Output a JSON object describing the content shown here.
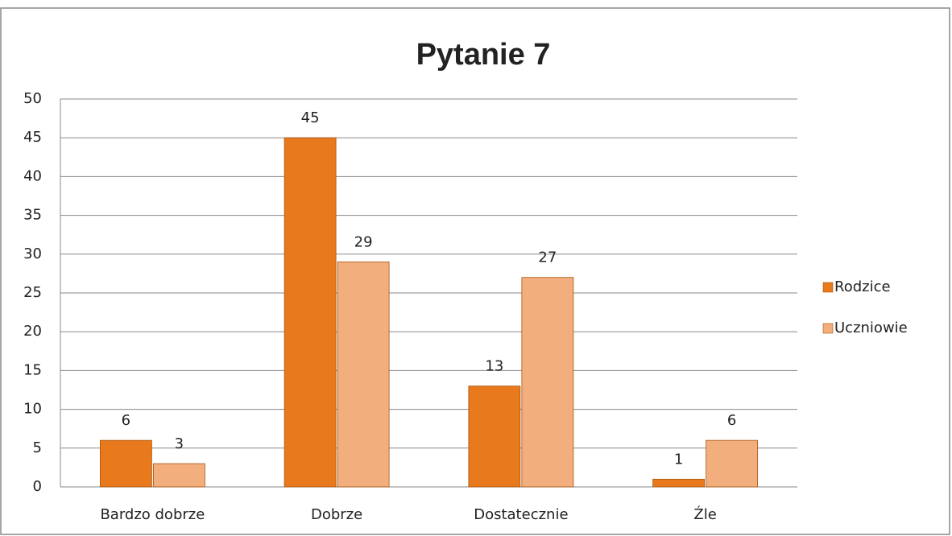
{
  "chart_data": {
    "type": "bar",
    "title": "Pytanie 7",
    "categories": [
      "Bardzo dobrze",
      "Dobrze",
      "Dostatecznie",
      "Źle"
    ],
    "series": [
      {
        "name": "Rodzice",
        "color": "#e8791c",
        "values": [
          6,
          45,
          13,
          1
        ]
      },
      {
        "name": "Uczniowie",
        "color": "#f2ae7c",
        "values": [
          3,
          29,
          27,
          6
        ]
      }
    ],
    "ylim": [
      0,
      50
    ],
    "yticks": [
      0,
      5,
      10,
      15,
      20,
      25,
      30,
      35,
      40,
      45,
      50
    ],
    "grid": true,
    "legend": "right"
  }
}
